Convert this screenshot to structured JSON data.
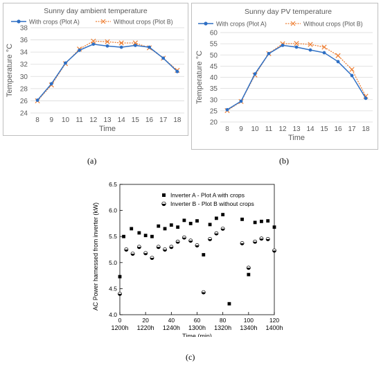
{
  "colors": {
    "series_a": "#2e6fc4",
    "series_b": "#ed7d31",
    "grid": "#d9d9d9",
    "axis_text": "#595959",
    "frame": "#bfbfbf",
    "scatter": "#000000"
  },
  "panel_labels": [
    "(a)",
    "(b)",
    "(c)"
  ],
  "chart_data": [
    {
      "type": "line",
      "title": "Sunny day ambient temperature",
      "xlabel": "Time",
      "ylabel": "Temperature °C",
      "categories": [
        "8",
        "9",
        "10",
        "11",
        "12",
        "13",
        "14",
        "15",
        "16",
        "17",
        "18"
      ],
      "ylim": [
        24,
        38
      ],
      "yticks": [
        "24",
        "26",
        "28",
        "30",
        "32",
        "34",
        "36",
        "38"
      ],
      "grid": true,
      "legend_position": "top",
      "series": [
        {
          "name": "With crops (Plot A)",
          "marker": "dot",
          "values": [
            26.1,
            28.8,
            32.2,
            34.3,
            35.3,
            35.0,
            34.8,
            35.1,
            34.8,
            33.0,
            30.8
          ]
        },
        {
          "name": "Without crops (Plot B)",
          "marker": "x",
          "values": [
            26.0,
            28.6,
            32.1,
            34.5,
            35.8,
            35.7,
            35.5,
            35.5,
            34.7,
            33.0,
            31.0
          ]
        }
      ]
    },
    {
      "type": "line",
      "title": "Sunny day PV temperature",
      "xlabel": "Time",
      "ylabel": "Temperature °C",
      "categories": [
        "8",
        "9",
        "10",
        "11",
        "12",
        "13",
        "14",
        "15",
        "16",
        "17",
        "18"
      ],
      "ylim": [
        20,
        60
      ],
      "yticks": [
        "20",
        "25",
        "30",
        "35",
        "40",
        "45",
        "50",
        "55",
        "60"
      ],
      "grid": true,
      "legend_position": "top",
      "series": [
        {
          "name": "With crops (Plot A)",
          "marker": "dot",
          "values": [
            25.5,
            29.3,
            41.5,
            50.6,
            54.3,
            53.5,
            52.2,
            51.0,
            47.0,
            40.8,
            30.6
          ]
        },
        {
          "name": "Without crops (Plot B)",
          "marker": "x",
          "values": [
            25.1,
            29.2,
            41.0,
            50.6,
            55.0,
            55.1,
            54.7,
            53.5,
            49.7,
            43.5,
            31.5
          ]
        }
      ]
    },
    {
      "type": "scatter",
      "xlabel": "Time (min)",
      "ylabel": "AC Power harnessed from inverter (kW)",
      "xlim": [
        0,
        120
      ],
      "ylim": [
        4.0,
        6.5
      ],
      "xticks": [
        {
          "value": 0,
          "num": "0",
          "time": "1200h"
        },
        {
          "value": 20,
          "num": "20",
          "time": "1220h"
        },
        {
          "value": 40,
          "num": "40",
          "time": "1240h"
        },
        {
          "value": 60,
          "num": "60",
          "time": "1300h"
        },
        {
          "value": 80,
          "num": "80",
          "time": "1320h"
        },
        {
          "value": 100,
          "num": "100",
          "time": "1340h"
        },
        {
          "value": 120,
          "num": "120",
          "time": "1400h"
        }
      ],
      "yticks": [
        "4.0",
        "4.5",
        "5.0",
        "5.5",
        "6.0",
        "6.5"
      ],
      "grid": false,
      "legend_position": "top-right",
      "series": [
        {
          "name": "Inverter A - Plot A with crops",
          "marker": "square",
          "x": [
            0,
            3,
            9,
            15,
            20,
            25,
            30,
            35,
            40,
            45,
            50,
            55,
            60,
            65,
            70,
            75,
            80,
            85,
            95,
            100,
            105,
            110,
            115,
            120
          ],
          "y": [
            4.73,
            5.5,
            5.65,
            5.57,
            5.52,
            5.5,
            5.7,
            5.65,
            5.72,
            5.68,
            5.81,
            5.75,
            5.8,
            5.15,
            5.73,
            5.85,
            5.92,
            4.21,
            5.83,
            4.77,
            5.77,
            5.79,
            5.8,
            5.68
          ]
        },
        {
          "name": "Inverter B - Plot B without crops",
          "marker": "half-circle",
          "x": [
            0,
            5,
            10,
            15,
            20,
            25,
            30,
            35,
            40,
            45,
            50,
            55,
            60,
            65,
            70,
            75,
            80,
            95,
            100,
            105,
            110,
            115,
            120
          ],
          "y": [
            4.4,
            5.25,
            5.17,
            5.3,
            5.18,
            5.09,
            5.3,
            5.25,
            5.3,
            5.4,
            5.48,
            5.42,
            5.33,
            4.43,
            5.45,
            5.56,
            5.65,
            5.37,
            4.9,
            5.4,
            5.46,
            5.45,
            5.23
          ]
        }
      ]
    }
  ]
}
